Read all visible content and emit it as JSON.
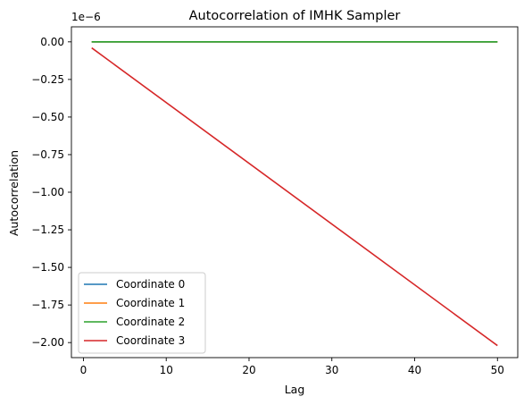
{
  "chart_data": {
    "type": "line",
    "title": "Autocorrelation of IMHK Sampler",
    "xlabel": "Lag",
    "ylabel": "Autocorrelation",
    "y_offset_label": "1e−6",
    "xlim": [
      -1.45,
      52.45
    ],
    "ylim": [
      -2.1,
      0.1
    ],
    "xticks": [
      0,
      10,
      20,
      30,
      40,
      50
    ],
    "xtick_labels": [
      "0",
      "10",
      "20",
      "30",
      "40",
      "50"
    ],
    "yticks": [
      0.0,
      -0.25,
      -0.5,
      -0.75,
      -1.0,
      -1.25,
      -1.5,
      -1.75,
      -2.0
    ],
    "ytick_labels": [
      "0.00",
      "−0.25",
      "−0.50",
      "−0.75",
      "−1.00",
      "−1.25",
      "−1.50",
      "−1.75",
      "−2.00"
    ],
    "grid": false,
    "legend_position": "lower-left",
    "series": [
      {
        "name": "Coordinate 0",
        "color": "#1f77b4",
        "x": [
          1,
          50
        ],
        "y": [
          0.0,
          0.0
        ]
      },
      {
        "name": "Coordinate 1",
        "color": "#ff7f0e",
        "x": [
          1,
          50
        ],
        "y": [
          0.0,
          0.0
        ]
      },
      {
        "name": "Coordinate 2",
        "color": "#2ca02c",
        "x": [
          1,
          50
        ],
        "y": [
          0.0,
          0.0
        ]
      },
      {
        "name": "Coordinate 3",
        "color": "#d62728",
        "x": [
          1,
          50
        ],
        "y": [
          -0.04,
          -2.02
        ]
      }
    ]
  }
}
